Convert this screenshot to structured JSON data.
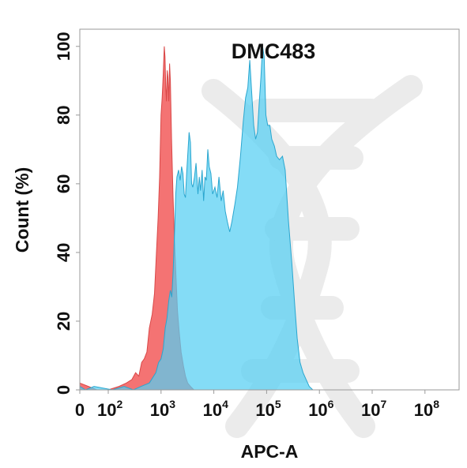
{
  "chart_data": {
    "type": "area",
    "title": "DMC483",
    "xlabel": "APC-A",
    "ylabel": "Count  (%)",
    "xscale": "biexponential-log",
    "xlim": [
      0,
      100000000
    ],
    "ylim": [
      0,
      105
    ],
    "x_ticks": [
      {
        "base": "0",
        "exp": ""
      },
      {
        "base": "10",
        "exp": "2"
      },
      {
        "base": "10",
        "exp": "3"
      },
      {
        "base": "10",
        "exp": "4"
      },
      {
        "base": "10",
        "exp": "5"
      },
      {
        "base": "10",
        "exp": "6"
      },
      {
        "base": "10",
        "exp": "7"
      },
      {
        "base": "10",
        "exp": "8"
      }
    ],
    "y_ticks": [
      "0",
      "20",
      "40",
      "60",
      "80",
      "100"
    ],
    "y_tick_values": [
      0,
      20,
      40,
      60,
      80,
      100
    ],
    "grid": false,
    "legend": "none",
    "series": [
      {
        "color": "#f36b6b",
        "stroke": "#d94848",
        "points": [
          [
            0,
            2
          ],
          [
            30,
            1
          ],
          [
            60,
            0
          ],
          [
            100,
            0
          ],
          [
            160,
            1
          ],
          [
            220,
            2
          ],
          [
            280,
            3
          ],
          [
            330,
            5
          ],
          [
            380,
            4
          ],
          [
            430,
            8
          ],
          [
            480,
            9
          ],
          [
            540,
            11
          ],
          [
            600,
            18
          ],
          [
            680,
            22
          ],
          [
            750,
            28
          ],
          [
            820,
            40
          ],
          [
            880,
            50
          ],
          [
            940,
            62
          ],
          [
            1000,
            80
          ],
          [
            1050,
            85
          ],
          [
            1100,
            92
          ],
          [
            1150,
            100
          ],
          [
            1190,
            97
          ],
          [
            1230,
            88
          ],
          [
            1270,
            84
          ],
          [
            1310,
            93
          ],
          [
            1350,
            91
          ],
          [
            1400,
            84
          ],
          [
            1450,
            95
          ],
          [
            1500,
            90
          ],
          [
            1580,
            73
          ],
          [
            1680,
            57
          ],
          [
            1800,
            43
          ],
          [
            1920,
            33
          ],
          [
            2050,
            23
          ],
          [
            2200,
            17
          ],
          [
            2400,
            11
          ],
          [
            2650,
            7
          ],
          [
            2900,
            4
          ],
          [
            3200,
            2
          ],
          [
            3600,
            1
          ],
          [
            4200,
            0
          ]
        ]
      },
      {
        "color": "#54cff2",
        "stroke": "#2aa6cf",
        "points": [
          [
            0,
            1
          ],
          [
            20,
            0
          ],
          [
            50,
            1
          ],
          [
            120,
            0
          ],
          [
            200,
            1
          ],
          [
            300,
            0
          ],
          [
            420,
            1
          ],
          [
            600,
            2
          ],
          [
            800,
            5
          ],
          [
            900,
            8
          ],
          [
            1000,
            9
          ],
          [
            1100,
            12
          ],
          [
            1200,
            18
          ],
          [
            1300,
            21
          ],
          [
            1400,
            26
          ],
          [
            1500,
            29
          ],
          [
            1600,
            27
          ],
          [
            1700,
            35
          ],
          [
            1800,
            46
          ],
          [
            1900,
            57
          ],
          [
            2000,
            62
          ],
          [
            2150,
            64
          ],
          [
            2300,
            61
          ],
          [
            2450,
            65
          ],
          [
            2600,
            63
          ],
          [
            2750,
            57
          ],
          [
            2900,
            56
          ],
          [
            3050,
            63
          ],
          [
            3200,
            68
          ],
          [
            3400,
            75
          ],
          [
            3600,
            72
          ],
          [
            3800,
            60
          ],
          [
            4000,
            59
          ],
          [
            4300,
            62
          ],
          [
            4600,
            66
          ],
          [
            5000,
            57
          ],
          [
            5300,
            62
          ],
          [
            5600,
            58
          ],
          [
            6000,
            64
          ],
          [
            6400,
            55
          ],
          [
            6800,
            62
          ],
          [
            7200,
            61
          ],
          [
            7700,
            70
          ],
          [
            8200,
            65
          ],
          [
            8800,
            63
          ],
          [
            9500,
            57
          ],
          [
            10500,
            59
          ],
          [
            11500,
            56
          ],
          [
            12500,
            62
          ],
          [
            13800,
            55
          ],
          [
            15000,
            58
          ],
          [
            16500,
            52
          ],
          [
            18000,
            49
          ],
          [
            20000,
            46
          ],
          [
            22000,
            49
          ],
          [
            25000,
            54
          ],
          [
            28000,
            59
          ],
          [
            32000,
            68
          ],
          [
            36000,
            78
          ],
          [
            40000,
            85
          ],
          [
            44000,
            88
          ],
          [
            48000,
            96
          ],
          [
            52000,
            87
          ],
          [
            57000,
            77
          ],
          [
            62000,
            73
          ],
          [
            67000,
            75
          ],
          [
            72000,
            83
          ],
          [
            78000,
            91
          ],
          [
            84000,
            100
          ],
          [
            90000,
            97
          ],
          [
            97000,
            80
          ],
          [
            105000,
            77
          ],
          [
            115000,
            77
          ],
          [
            125000,
            73
          ],
          [
            140000,
            71
          ],
          [
            155000,
            68
          ],
          [
            175000,
            67
          ],
          [
            200000,
            68
          ],
          [
            225000,
            64
          ],
          [
            260000,
            49
          ],
          [
            300000,
            37
          ],
          [
            340000,
            25
          ],
          [
            380000,
            15
          ],
          [
            430000,
            8
          ],
          [
            490000,
            5
          ],
          [
            560000,
            3
          ],
          [
            640000,
            1
          ],
          [
            750000,
            0
          ],
          [
            1000000,
            0
          ],
          [
            3000000,
            0
          ],
          [
            10000000,
            0
          ],
          [
            100000000,
            0
          ]
        ]
      }
    ]
  }
}
